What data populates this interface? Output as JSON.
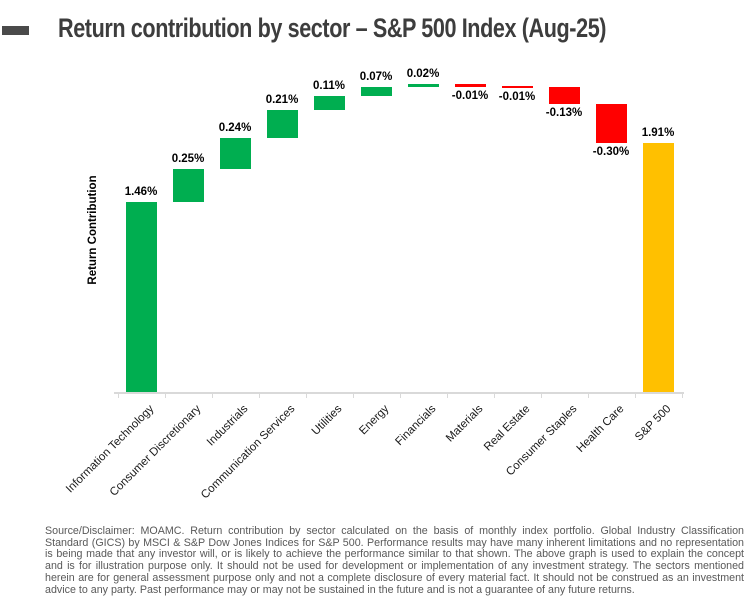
{
  "header": {
    "title": "Return contribution by sector – S&P 500 Index (Aug-25)"
  },
  "chart_data": {
    "type": "bar",
    "subtype": "waterfall",
    "title": "Return contribution by sector – S&P 500 Index (Aug-25)",
    "xlabel": "",
    "ylabel": "Return Contribution",
    "categories": [
      "Information Technology",
      "Consumer Discretionary",
      "Industrials",
      "Communication Services",
      "Utilities",
      "Energy",
      "Financials",
      "Materials",
      "Real Estate",
      "Consumer Staples",
      "Health Care",
      "S&P 500"
    ],
    "values": [
      1.46,
      0.25,
      0.24,
      0.21,
      0.11,
      0.07,
      0.02,
      -0.01,
      -0.01,
      -0.13,
      -0.3,
      1.91
    ],
    "labels": [
      "1.46%",
      "0.25%",
      "0.24%",
      "0.21%",
      "0.11%",
      "0.07%",
      "0.02%",
      "-0.01%",
      "-0.01%",
      "-0.13%",
      "-0.30%",
      "1.91%"
    ],
    "roles": [
      "delta",
      "delta",
      "delta",
      "delta",
      "delta",
      "delta",
      "delta",
      "delta",
      "delta",
      "delta",
      "delta",
      "total"
    ],
    "colors": {
      "positive": "#00AE50",
      "negative": "#FF0000",
      "total": "#FFC000"
    },
    "ylim": [
      0,
      2.36
    ],
    "grid": false,
    "legend": false
  },
  "footer": {
    "disclaimer": "Source/Disclaimer: MOAMC. Return contribution by sector calculated on the basis of monthly index portfolio. Global Industry Classification Standard (GICS) by MSCI & S&P Dow Jones Indices for S&P 500. Performance results may have many inherent limitations and no representation is being made that any investor will, or is likely to achieve the performance similar to that shown. The above graph is used to explain the concept and is for illustration purpose only. It should not be used for development or implementation of any investment strategy. The sectors mentioned herein are for general assessment purpose only and not a complete disclosure of every material fact. It should not be construed as an investment advice to any party. Past performance may or may not be sustained in the future and is not a guarantee of any future returns."
  }
}
